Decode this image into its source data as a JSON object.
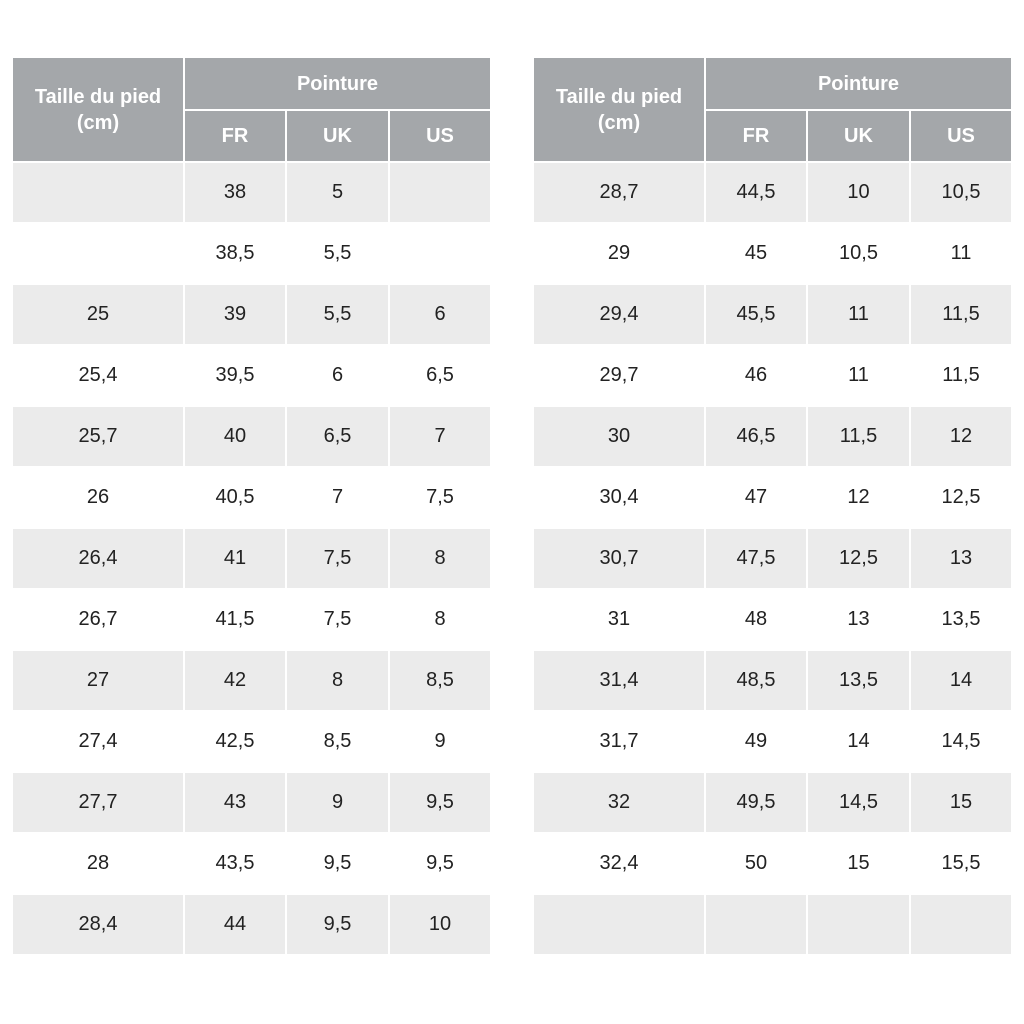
{
  "tables": [
    {
      "header": {
        "size": "Taille du pied\n(cm)",
        "group": "Pointure",
        "columns": [
          "FR",
          "UK",
          "US"
        ]
      },
      "rows": [
        [
          null,
          "38",
          "5",
          null
        ],
        [
          null,
          "38,5",
          "5,5",
          null
        ],
        [
          "25",
          "39",
          "5,5",
          "6"
        ],
        [
          "25,4",
          "39,5",
          "6",
          "6,5"
        ],
        [
          "25,7",
          "40",
          "6,5",
          "7"
        ],
        [
          "26",
          "40,5",
          "7",
          "7,5"
        ],
        [
          "26,4",
          "41",
          "7,5",
          "8"
        ],
        [
          "26,7",
          "41,5",
          "7,5",
          "8"
        ],
        [
          "27",
          "42",
          "8",
          "8,5"
        ],
        [
          "27,4",
          "42,5",
          "8,5",
          "9"
        ],
        [
          "27,7",
          "43",
          "9",
          "9,5"
        ],
        [
          "28",
          "43,5",
          "9,5",
          "9,5"
        ],
        [
          "28,4",
          "44",
          "9,5",
          "10"
        ]
      ]
    },
    {
      "header": {
        "size": "Taille du pied\n(cm)",
        "group": "Pointure",
        "columns": [
          "FR",
          "UK",
          "US"
        ]
      },
      "rows": [
        [
          "28,7",
          "44,5",
          "10",
          "10,5"
        ],
        [
          "29",
          "45",
          "10,5",
          "11"
        ],
        [
          "29,4",
          "45,5",
          "11",
          "11,5"
        ],
        [
          "29,7",
          "46",
          "11",
          "11,5"
        ],
        [
          "30",
          "46,5",
          "11,5",
          "12"
        ],
        [
          "30,4",
          "47",
          "12",
          "12,5"
        ],
        [
          "30,7",
          "47,5",
          "12,5",
          "13"
        ],
        [
          "31",
          "48",
          "13",
          "13,5"
        ],
        [
          "31,4",
          "48,5",
          "13,5",
          "14"
        ],
        [
          "31,7",
          "49",
          "14",
          "14,5"
        ],
        [
          "32",
          "49,5",
          "14,5",
          "15"
        ],
        [
          "32,4",
          "50",
          "15",
          "15,5"
        ],
        [
          null,
          null,
          null,
          null
        ]
      ]
    }
  ]
}
